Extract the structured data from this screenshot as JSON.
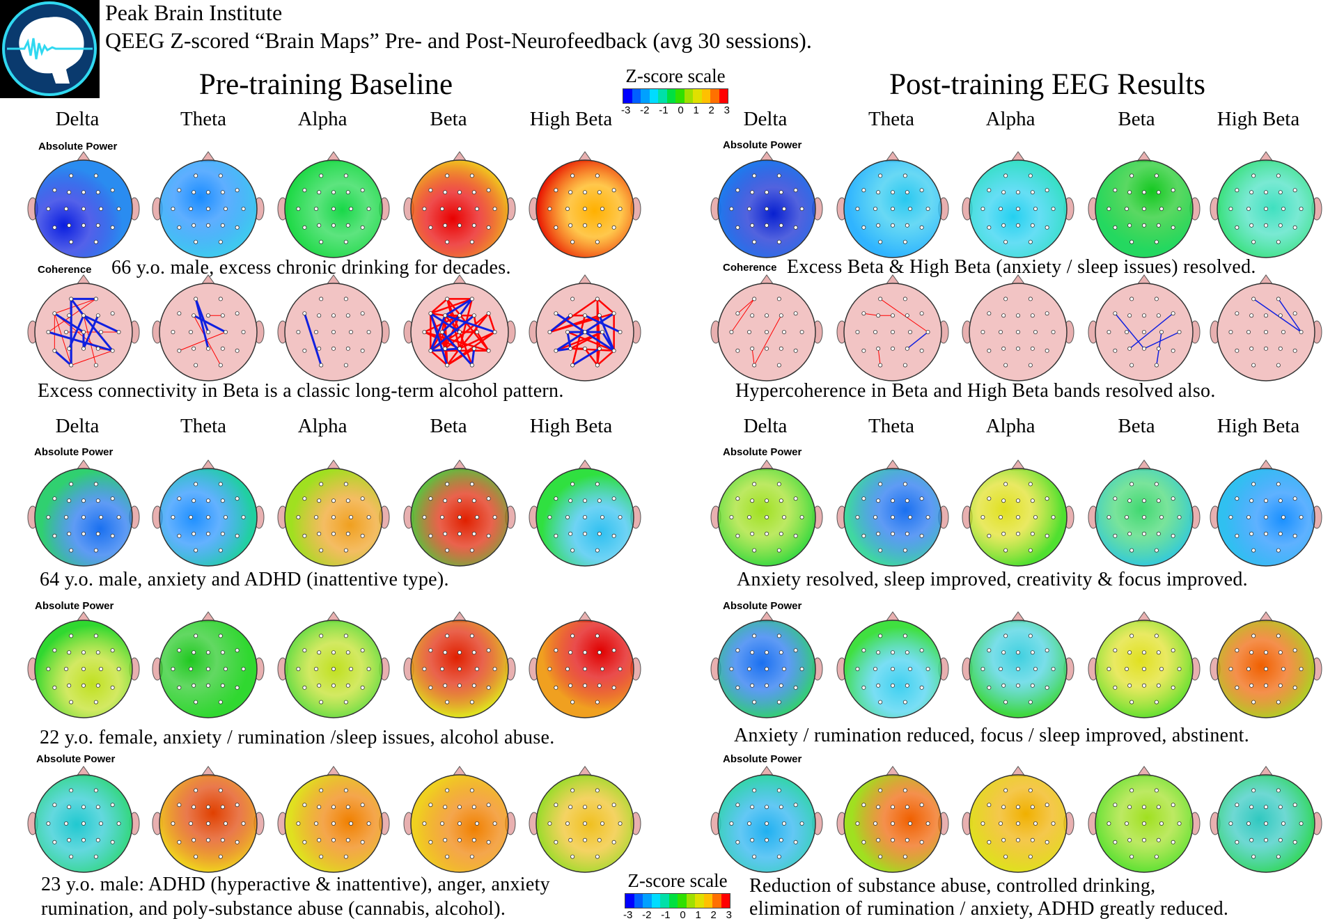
{
  "header": {
    "logo_alt": "Peak Brain Institute",
    "org": "Peak Brain Institute",
    "subtitle": "QEEG Z-scored “Brain Maps” Pre- and Post-Neurofeedback (avg 30 sessions).",
    "pre_title": "Pre-training Baseline",
    "post_title": "Post-training EEG Results"
  },
  "bands": [
    "Delta",
    "Theta",
    "Alpha",
    "Beta",
    "High Beta"
  ],
  "labels": {
    "absolute_power": "Absolute Power",
    "coherence": "Coherence"
  },
  "zscale": {
    "label": "Z-score scale",
    "ticks": [
      "-3",
      "-2",
      "-1",
      "0",
      "1",
      "2",
      "3"
    ],
    "colors": [
      "#0000ff",
      "#0060ff",
      "#00a0ff",
      "#00dcff",
      "#00e0a8",
      "#00e040",
      "#30e000",
      "#a0e000",
      "#e0e000",
      "#ffc000",
      "#ff7000",
      "#ff0000"
    ]
  },
  "captions": {
    "case1_pre": "66 y.o. male, excess chronic drinking for decades.",
    "case1_post": "Excess Beta & High Beta (anxiety / sleep issues) resolved.",
    "coh_pre": "Excess connectivity in Beta is a classic long-term alcohol pattern.",
    "coh_post": "Hypercoherence in Beta and High Beta bands resolved also.",
    "case2_pre": "64 y.o. male, anxiety and ADHD (inattentive type).",
    "case2_post": "Anxiety resolved, sleep improved, creativity & focus improved.",
    "case3_pre": "22 y.o. female, anxiety / rumination /sleep issues, alcohol abuse.",
    "case3_post": "Anxiety / rumination reduced, focus / sleep improved, abstinent.",
    "case4_pre_1": "23 y.o. male: ADHD (hyperactive & inattentive), anger, anxiety",
    "case4_pre_2": "rumination,  and poly-substance abuse (cannabis, alcohol).",
    "case4_post_1": "Reduction of substance abuse, controlled drinking,",
    "case4_post_2": "elimination of rumination / anxiety, ADHD greatly reduced."
  },
  "power_maps": [
    {
      "case": "case1",
      "pre": [
        [
          "#2a8cf0",
          "#0a1ee0"
        ],
        [
          "#40c8f0",
          "#1a8cff"
        ],
        [
          "#18d840",
          "#18d848"
        ],
        [
          "#f0c020",
          "#e80000"
        ],
        [
          "#e81000",
          "#ffb000"
        ]
      ],
      "post": [
        [
          "#1a80f0",
          "#0820d0"
        ],
        [
          "#30b4ff",
          "#28c8f0"
        ],
        [
          "#34e0c0",
          "#24d0f0"
        ],
        [
          "#24d860",
          "#14c820"
        ],
        [
          "#34e070",
          "#40e0c0"
        ]
      ]
    },
    {
      "case": "case2",
      "pre": [
        [
          "#30d070",
          "#1a70f0"
        ],
        [
          "#20d0a0",
          "#2090ff"
        ],
        [
          "#a0e020",
          "#f0a020"
        ],
        [
          "#40d840",
          "#e02000"
        ],
        [
          "#30e040",
          "#30c0f0"
        ]
      ],
      "post": [
        [
          "#30d840",
          "#a0e020"
        ],
        [
          "#40d8a0",
          "#1a70f0"
        ],
        [
          "#50e030",
          "#e0e020"
        ],
        [
          "#30c8e0",
          "#40d870"
        ],
        [
          "#30c0f0",
          "#1a90ff"
        ]
      ]
    },
    {
      "case": "case3",
      "pre": [
        [
          "#30d830",
          "#c0e020"
        ],
        [
          "#30d830",
          "#20c820"
        ],
        [
          "#40d840",
          "#c0e020"
        ],
        [
          "#e0e020",
          "#e02000"
        ],
        [
          "#f0a020",
          "#e00000"
        ]
      ],
      "post": [
        [
          "#30d860",
          "#1a70f0"
        ],
        [
          "#40e040",
          "#40d0f0"
        ],
        [
          "#40d840",
          "#40d0e0"
        ],
        [
          "#60e030",
          "#e0e020"
        ],
        [
          "#a0e020",
          "#f06000"
        ]
      ]
    },
    {
      "case": "case4",
      "pre": [
        [
          "#30d870",
          "#20c8d0"
        ],
        [
          "#f0d020",
          "#e04000"
        ],
        [
          "#e0e020",
          "#f08000"
        ],
        [
          "#f0d020",
          "#f08000"
        ],
        [
          "#80e020",
          "#f0c020"
        ]
      ],
      "post": [
        [
          "#30d8a0",
          "#20b0f0"
        ],
        [
          "#a0e020",
          "#f06000"
        ],
        [
          "#e0e020",
          "#f0b000"
        ],
        [
          "#50e030",
          "#a0e020"
        ],
        [
          "#30d850",
          "#30c8c0"
        ]
      ]
    }
  ],
  "coherence_maps": {
    "pre": [
      {
        "red": 10,
        "blue": 12
      },
      {
        "red": 3,
        "blue": 4
      },
      {
        "red": 0,
        "blue": 1
      },
      {
        "red": 40,
        "blue": 12
      },
      {
        "red": 25,
        "blue": 10
      }
    ],
    "post": [
      {
        "red": 4,
        "blue": 0
      },
      {
        "red": 4,
        "blue": 1
      },
      {
        "red": 0,
        "blue": 0
      },
      {
        "red": 0,
        "blue": 4
      },
      {
        "red": 1,
        "blue": 2
      }
    ]
  },
  "colors": {
    "head": "#e8b0b0",
    "coh_fill": "#f2c4c4",
    "red_link": "#ff0000",
    "blue_link": "#1020e0",
    "logo_bg": "#0a3a6e",
    "logo_ring": "#30d8f0"
  }
}
